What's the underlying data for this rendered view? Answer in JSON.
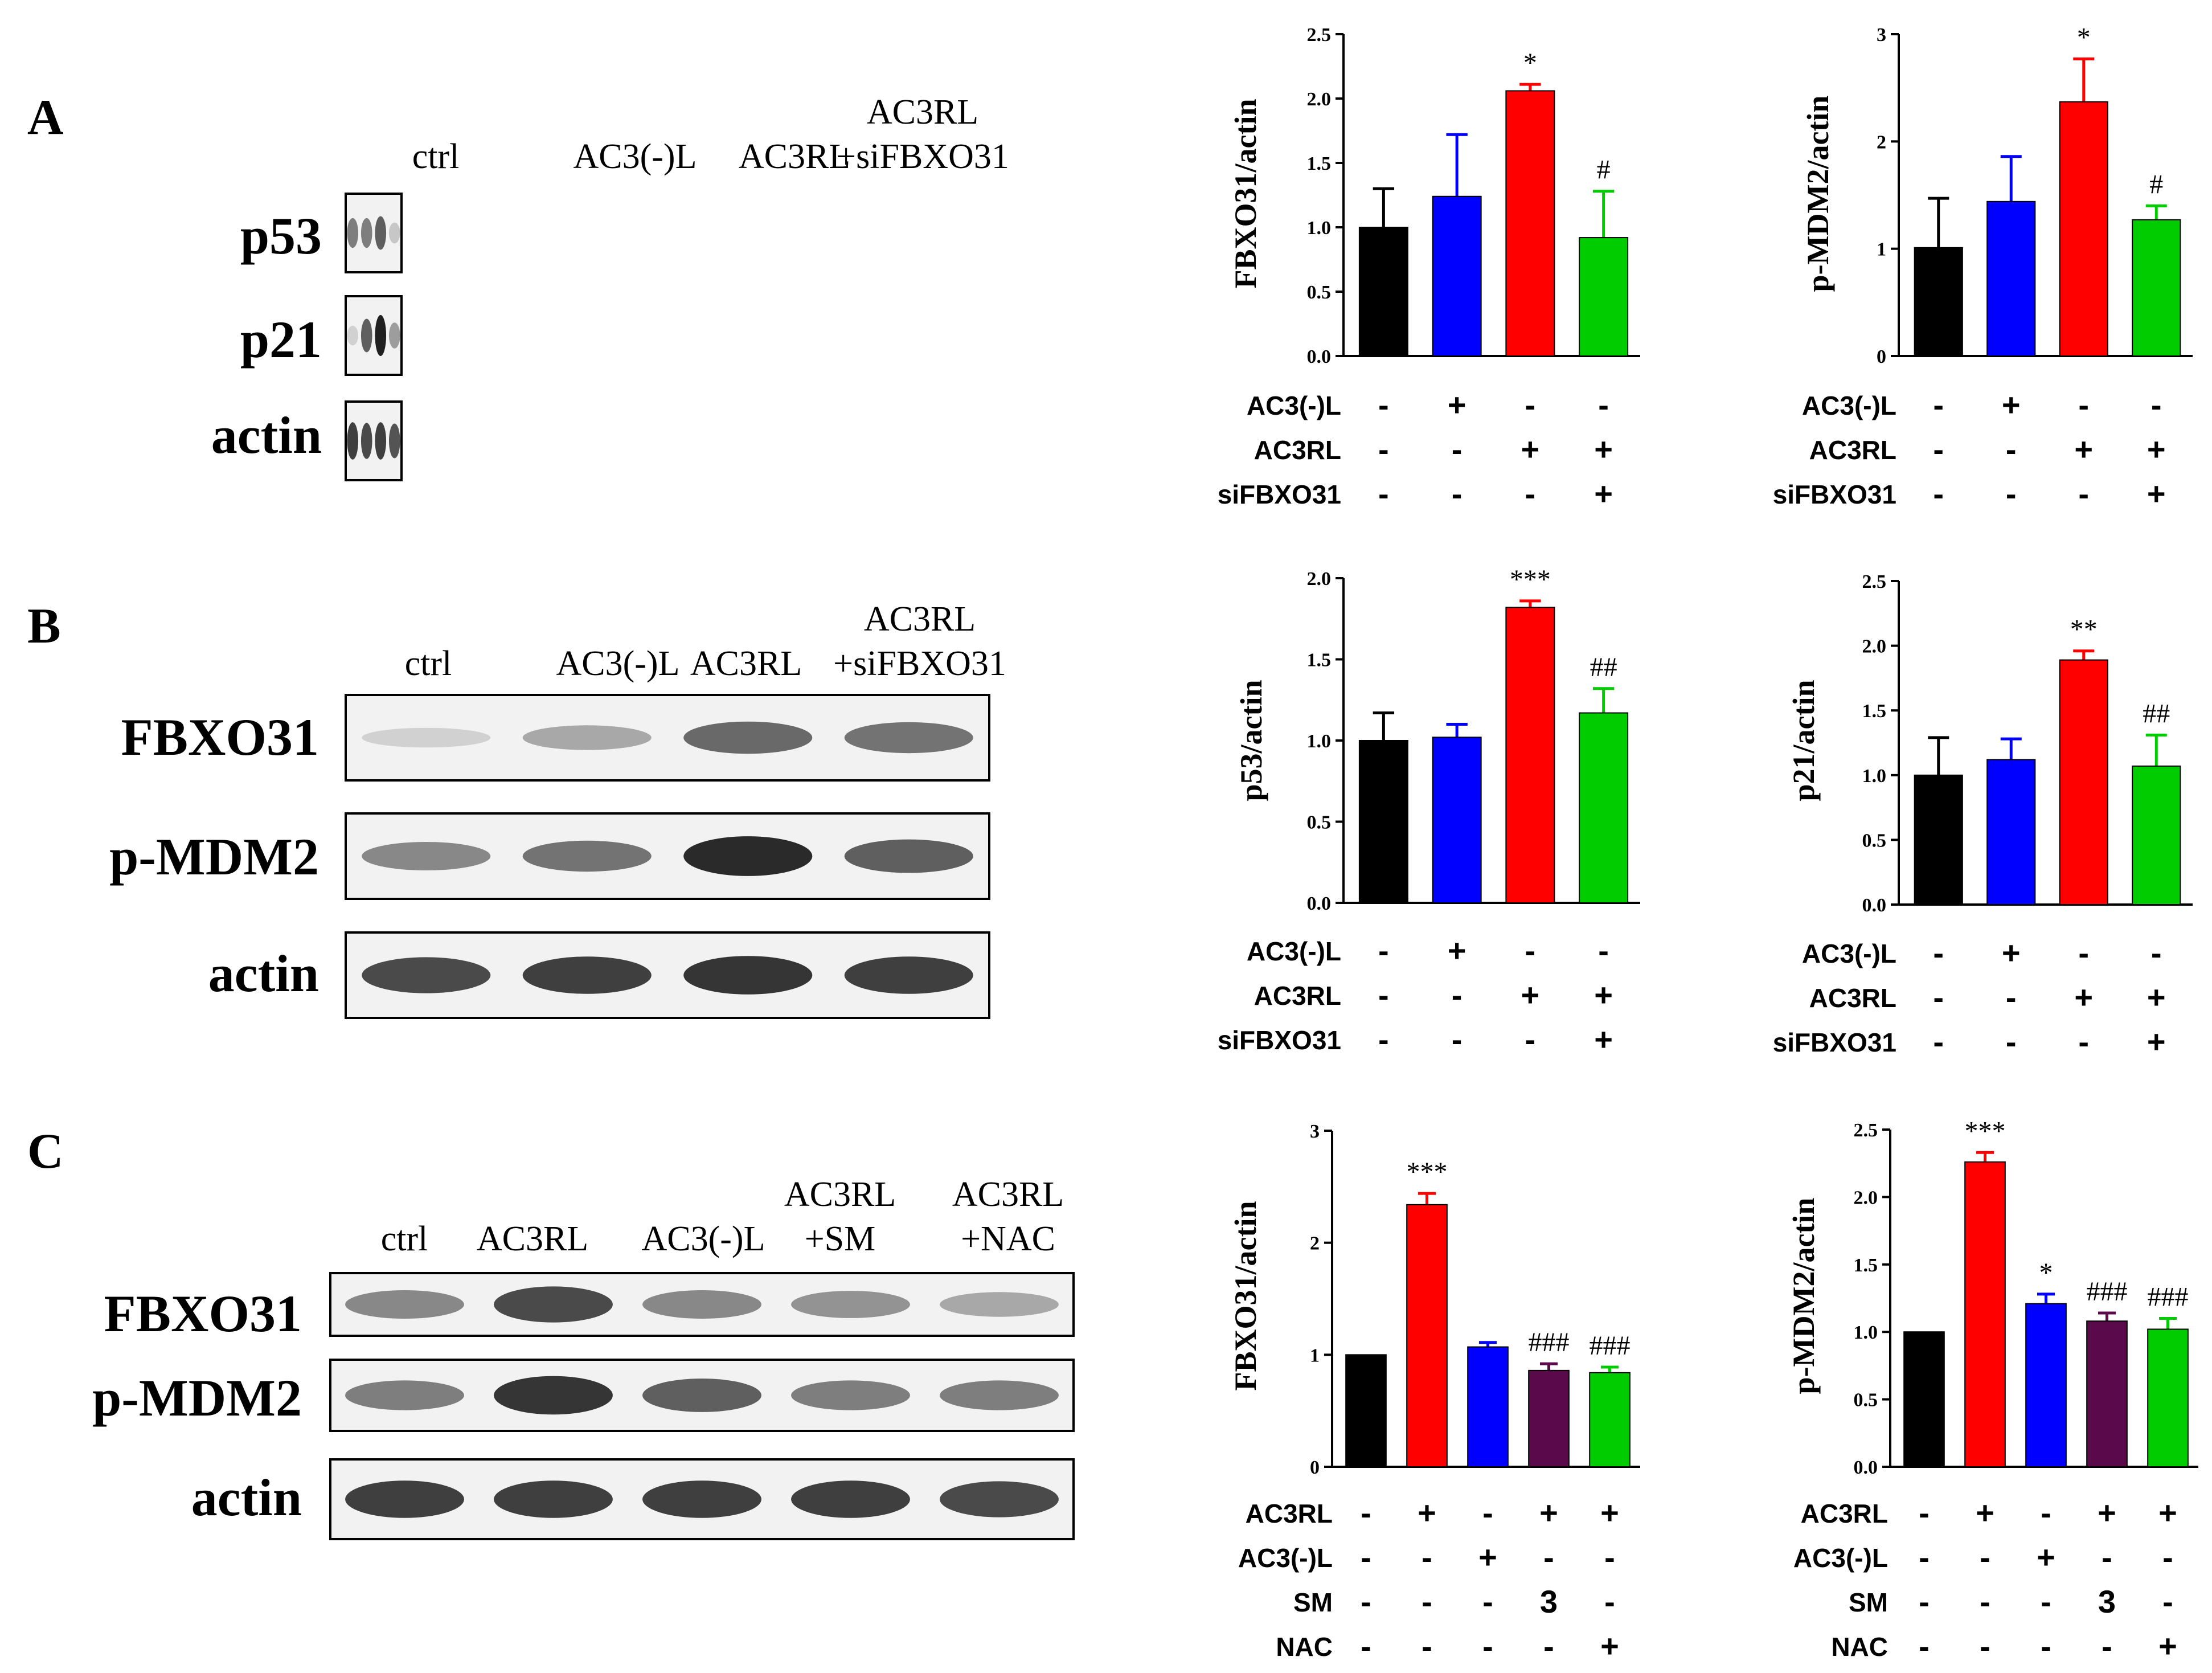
{
  "panels": [
    {
      "letter": "A",
      "blot": {
        "lanes": [
          "ctrl",
          "AC3(-)L",
          "AC3RL",
          "AC3RL\n+siFBXO31"
        ],
        "rows": [
          {
            "protein": "p53",
            "intensity": [
              0.55,
              0.55,
              0.7,
              0.2
            ]
          },
          {
            "protein": "p21",
            "intensity": [
              0.15,
              0.7,
              1.0,
              0.4
            ]
          },
          {
            "protein": "actin",
            "intensity": [
              0.85,
              0.8,
              0.85,
              0.75
            ]
          }
        ]
      }
    },
    {
      "letter": "B",
      "blot": {
        "lanes": [
          "ctrl",
          "AC3(-)L",
          "AC3RL",
          "AC3RL\n+siFBXO31"
        ],
        "rows": [
          {
            "protein": "FBXO31",
            "intensity": [
              0.15,
              0.35,
              0.65,
              0.6
            ]
          },
          {
            "protein": "p-MDM2",
            "intensity": [
              0.5,
              0.6,
              0.95,
              0.7
            ]
          },
          {
            "protein": "actin",
            "intensity": [
              0.8,
              0.85,
              0.9,
              0.85
            ]
          }
        ]
      }
    },
    {
      "letter": "C",
      "blot": {
        "lanes": [
          "ctrl",
          "AC3RL",
          "AC3(-)L",
          "AC3RL\n+SM",
          "AC3RL\n+NAC"
        ],
        "rows": [
          {
            "protein": "FBXO31",
            "intensity": [
              0.5,
              0.8,
              0.5,
              0.45,
              0.35
            ]
          },
          {
            "protein": "p-MDM2",
            "intensity": [
              0.55,
              0.9,
              0.7,
              0.55,
              0.55
            ]
          },
          {
            "protein": "actin",
            "intensity": [
              0.85,
              0.85,
              0.85,
              0.85,
              0.8
            ]
          }
        ]
      }
    }
  ],
  "chart_data": [
    {
      "type": "bar",
      "ylabel": "FBXO31/actin",
      "ylim": [
        0,
        2.5
      ],
      "yticks": [
        "0.0",
        "0.5",
        "1.0",
        "1.5",
        "2.0",
        "2.5"
      ],
      "values": [
        1.0,
        1.24,
        2.06,
        0.92
      ],
      "errors": [
        0.3,
        0.48,
        0.05,
        0.36
      ],
      "significance": [
        "",
        "",
        "*",
        "#"
      ],
      "colors": [
        "#000000",
        "#0000ff",
        "#ff0000",
        "#00cc00"
      ],
      "conditions": [
        {
          "label": "AC3(-)L",
          "values": [
            "-",
            "+",
            "-",
            "-"
          ]
        },
        {
          "label": "AC3RL",
          "values": [
            "-",
            "-",
            "+",
            "+"
          ]
        },
        {
          "label": "siFBXO31",
          "values": [
            "-",
            "-",
            "-",
            "+"
          ]
        }
      ]
    },
    {
      "type": "bar",
      "ylabel": "p-MDM2/actin",
      "ylim": [
        0,
        3
      ],
      "yticks": [
        "0",
        "1",
        "2",
        "3"
      ],
      "values": [
        1.01,
        1.44,
        2.37,
        1.27
      ],
      "errors": [
        0.46,
        0.42,
        0.4,
        0.13
      ],
      "significance": [
        "",
        "",
        "*",
        "#"
      ],
      "colors": [
        "#000000",
        "#0000ff",
        "#ff0000",
        "#00cc00"
      ],
      "conditions": [
        {
          "label": "AC3(-)L",
          "values": [
            "-",
            "+",
            "-",
            "-"
          ]
        },
        {
          "label": "AC3RL",
          "values": [
            "-",
            "-",
            "+",
            "+"
          ]
        },
        {
          "label": "siFBXO31",
          "values": [
            "-",
            "-",
            "-",
            "+"
          ]
        }
      ]
    },
    {
      "type": "bar",
      "ylabel": "p53/actin",
      "ylim": [
        0,
        2.0
      ],
      "yticks": [
        "0.0",
        "0.5",
        "1.0",
        "1.5",
        "2.0"
      ],
      "values": [
        1.0,
        1.02,
        1.82,
        1.17
      ],
      "errors": [
        0.17,
        0.08,
        0.04,
        0.15
      ],
      "significance": [
        "",
        "",
        "***",
        "##"
      ],
      "colors": [
        "#000000",
        "#0000ff",
        "#ff0000",
        "#00cc00"
      ],
      "conditions": [
        {
          "label": "AC3(-)L",
          "values": [
            "-",
            "+",
            "-",
            "-"
          ]
        },
        {
          "label": "AC3RL",
          "values": [
            "-",
            "-",
            "+",
            "+"
          ]
        },
        {
          "label": "siFBXO31",
          "values": [
            "-",
            "-",
            "-",
            "+"
          ]
        }
      ]
    },
    {
      "type": "bar",
      "ylabel": "p21/actin",
      "ylim": [
        0,
        2.5
      ],
      "yticks": [
        "0.0",
        "0.5",
        "1.0",
        "1.5",
        "2.0",
        "2.5"
      ],
      "values": [
        1.0,
        1.12,
        1.89,
        1.07
      ],
      "errors": [
        0.29,
        0.16,
        0.07,
        0.24
      ],
      "significance": [
        "",
        "",
        "**",
        "##"
      ],
      "colors": [
        "#000000",
        "#0000ff",
        "#ff0000",
        "#00cc00"
      ],
      "conditions": [
        {
          "label": "AC3(-)L",
          "values": [
            "-",
            "+",
            "-",
            "-"
          ]
        },
        {
          "label": "AC3RL",
          "values": [
            "-",
            "-",
            "+",
            "+"
          ]
        },
        {
          "label": "siFBXO31",
          "values": [
            "-",
            "-",
            "-",
            "+"
          ]
        }
      ]
    },
    {
      "type": "bar",
      "ylabel": "FBXO31/actin",
      "ylim": [
        0,
        3
      ],
      "yticks": [
        "0",
        "1",
        "2",
        "3"
      ],
      "values": [
        1.0,
        2.34,
        1.07,
        0.86,
        0.84
      ],
      "errors": [
        0.0,
        0.1,
        0.04,
        0.06,
        0.05
      ],
      "significance": [
        "",
        "***",
        "",
        "###",
        "###"
      ],
      "colors": [
        "#000000",
        "#ff0000",
        "#0000ff",
        "#5a0a4a",
        "#00cc00"
      ],
      "conditions": [
        {
          "label": "AC3RL",
          "values": [
            "-",
            "+",
            "-",
            "+",
            "+"
          ]
        },
        {
          "label": "AC3(-)L",
          "values": [
            "-",
            "-",
            "+",
            "-",
            "-"
          ]
        },
        {
          "label": "SM",
          "values": [
            "-",
            "-",
            "-",
            "3",
            "-"
          ]
        },
        {
          "label": "NAC",
          "values": [
            "-",
            "-",
            "-",
            "-",
            "+"
          ]
        }
      ]
    },
    {
      "type": "bar",
      "ylabel": "p-MDM2/actin",
      "ylim": [
        0,
        2.5
      ],
      "yticks": [
        "0.0",
        "0.5",
        "1.0",
        "1.5",
        "2.0",
        "2.5"
      ],
      "values": [
        1.0,
        2.26,
        1.21,
        1.08,
        1.02
      ],
      "errors": [
        0.0,
        0.07,
        0.07,
        0.06,
        0.08
      ],
      "significance": [
        "",
        "***",
        "*",
        "###",
        "###"
      ],
      "colors": [
        "#000000",
        "#ff0000",
        "#0000ff",
        "#5a0a4a",
        "#00cc00"
      ],
      "conditions": [
        {
          "label": "AC3RL",
          "values": [
            "-",
            "+",
            "-",
            "+",
            "+"
          ]
        },
        {
          "label": "AC3(-)L",
          "values": [
            "-",
            "-",
            "+",
            "-",
            "-"
          ]
        },
        {
          "label": "SM",
          "values": [
            "-",
            "-",
            "-",
            "3",
            "-"
          ]
        },
        {
          "label": "NAC",
          "values": [
            "-",
            "-",
            "-",
            "-",
            "+"
          ]
        }
      ]
    }
  ]
}
